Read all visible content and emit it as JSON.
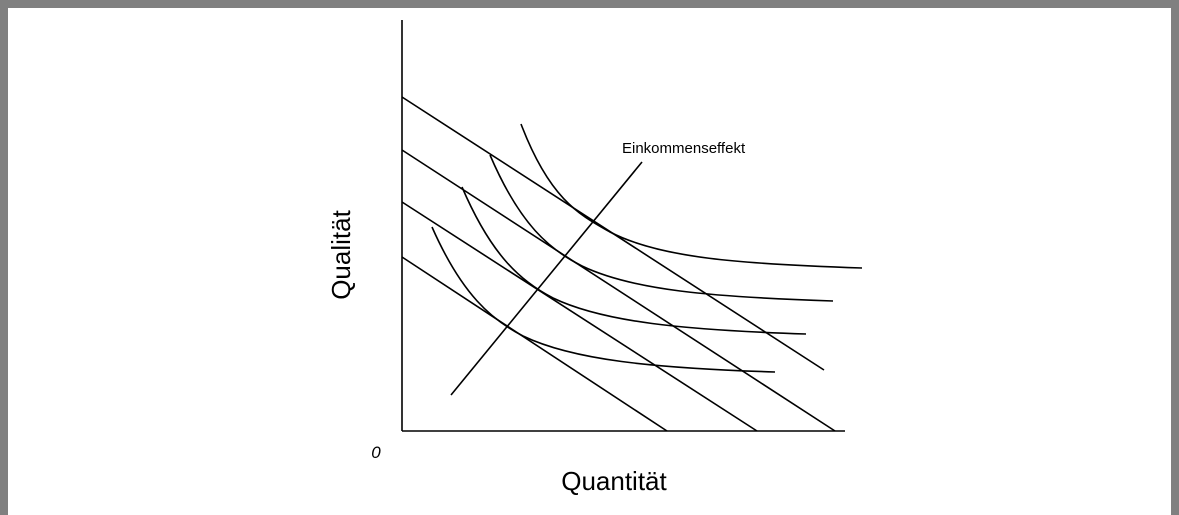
{
  "diagram": {
    "origin_label": "0",
    "x_axis_label": "Quantität",
    "y_axis_label": "Qualität",
    "annotation": "Einkommenseffekt"
  }
}
